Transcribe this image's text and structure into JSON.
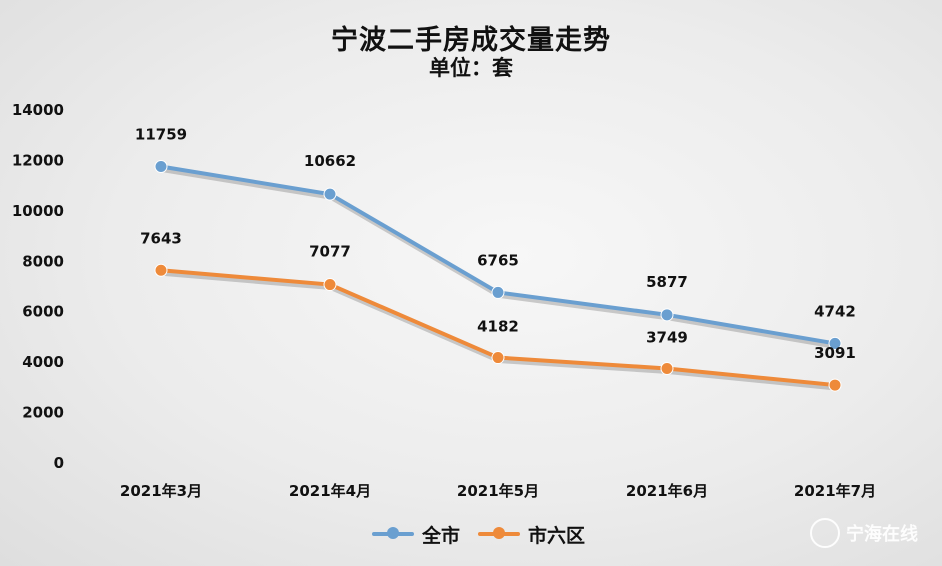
{
  "chart_data": {
    "type": "line",
    "title": "宁波二手房成交量走势",
    "subtitle": "单位：套",
    "categories": [
      "2021年3月",
      "2021年4月",
      "2021年5月",
      "2021年6月",
      "2021年7月"
    ],
    "yticks": [
      "0",
      "2000",
      "4000",
      "6000",
      "8000",
      "10000",
      "12000",
      "14000"
    ],
    "ylim": [
      0,
      14000
    ],
    "grid": false,
    "legend_position": "bottom",
    "series": [
      {
        "name": "全市",
        "color": "#6a9fd0",
        "values": [
          11759,
          10662,
          6765,
          5877,
          4742
        ],
        "labels": [
          "11759",
          "10662",
          "6765",
          "5877",
          "4742"
        ]
      },
      {
        "name": "市六区",
        "color": "#ee8a3a",
        "values": [
          7643,
          7077,
          4182,
          3749,
          3091
        ],
        "labels": [
          "7643",
          "7077",
          "4182",
          "3749",
          "3091"
        ]
      }
    ]
  },
  "watermark": {
    "icon": "logo-icon",
    "text": "宁海在线"
  }
}
